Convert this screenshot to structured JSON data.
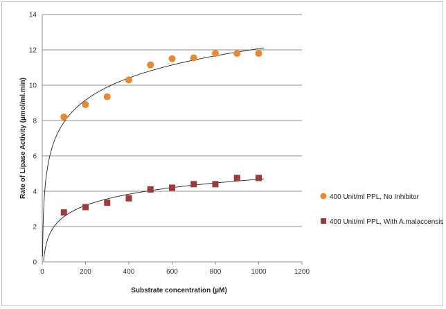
{
  "chart_data": {
    "type": "scatter",
    "xlabel": "Substrate concentration (µM)",
    "ylabel": "Rate of Lipase Activity (µmol/ml.min)",
    "xlim": [
      0,
      1200
    ],
    "ylim": [
      0,
      14
    ],
    "x_ticks": [
      0,
      200,
      400,
      600,
      800,
      1000,
      1200
    ],
    "y_ticks": [
      0,
      2,
      4,
      6,
      8,
      10,
      12,
      14
    ],
    "grid": "horizontal",
    "legend_position": "right",
    "series": [
      {
        "name": "400 Unit/ml PPL, No Inhibitor",
        "marker": "circle",
        "color": "#e8892e",
        "x": [
          100,
          200,
          300,
          400,
          500,
          600,
          700,
          800,
          900,
          1000
        ],
        "y": [
          8.2,
          8.9,
          9.35,
          10.3,
          11.15,
          11.5,
          11.55,
          11.8,
          11.8,
          11.8
        ],
        "trendline": "logarithmic"
      },
      {
        "name": "400 Unit/ml PPL, With A.malaccensis",
        "marker": "square",
        "color": "#9e3a3a",
        "x": [
          100,
          200,
          300,
          400,
          500,
          600,
          700,
          800,
          900,
          1000
        ],
        "y": [
          2.8,
          3.1,
          3.35,
          3.6,
          4.1,
          4.2,
          4.4,
          4.4,
          4.75,
          4.75
        ],
        "trendline": "logarithmic"
      }
    ]
  }
}
